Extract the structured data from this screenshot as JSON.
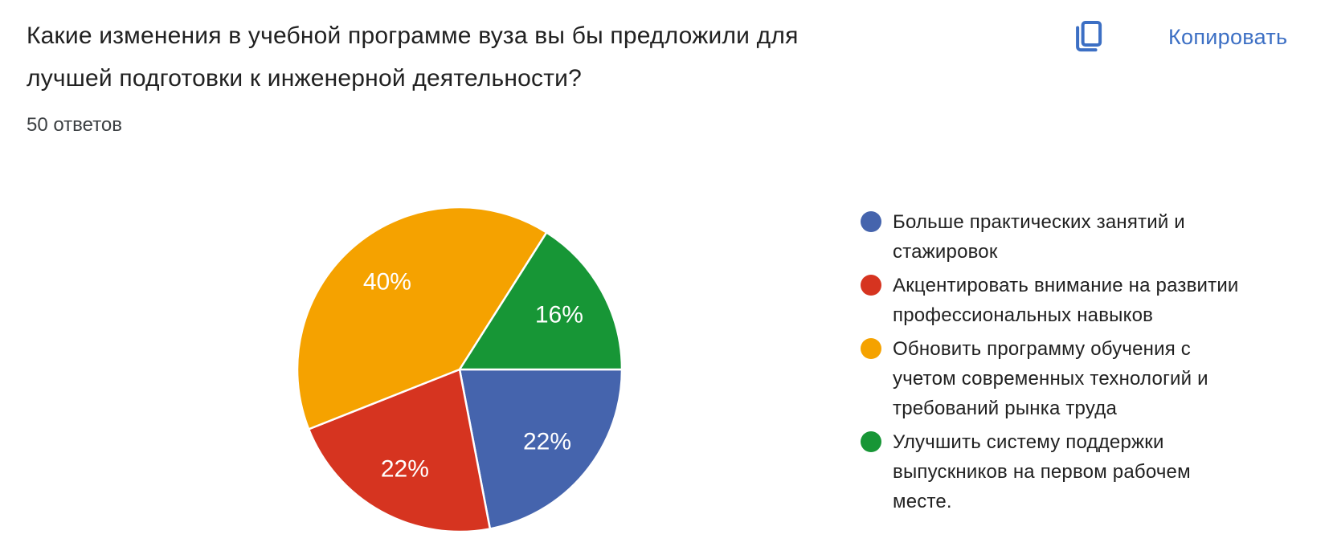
{
  "header": {
    "title": "Какие изменения в учебной программе вуза вы бы предложили для\nлучшей подготовки к инженерной деятельности?",
    "responses_count": "50 ответов",
    "copy_button": {
      "label": "Копировать",
      "icon": "copy-icon"
    }
  },
  "colors": {
    "accent_blue": "#3c6fc4",
    "text_primary": "#212121",
    "text_secondary": "#3c4043",
    "slice_border": "#ffffff"
  },
  "chart_data": {
    "type": "pie",
    "title": "Какие изменения в учебной программе вуза вы бы предложили для лучшей подготовки к инженерной деятельности?",
    "total_responses": 50,
    "unit": "%",
    "start_angle_deg": 0,
    "direction": "clockwise",
    "legend_position": "right",
    "grid": false,
    "slices": [
      {
        "label": "Больше практических занятий и\nстажировок",
        "value": 22,
        "percent_label": "22%",
        "color": "#4564ad"
      },
      {
        "label": "Акцентировать внимание на развитии\nпрофессиональных навыков",
        "value": 22,
        "percent_label": "22%",
        "color": "#d63420"
      },
      {
        "label": "Обновить программу обучения с\nучетом современных технологий и\nтребований рынка труда",
        "value": 40,
        "percent_label": "40%",
        "color": "#f5a200"
      },
      {
        "label": "Улучшить систему поддержки\nвыпускников на первом рабочем\nместе.",
        "value": 16,
        "percent_label": "16%",
        "color": "#179636"
      }
    ]
  }
}
